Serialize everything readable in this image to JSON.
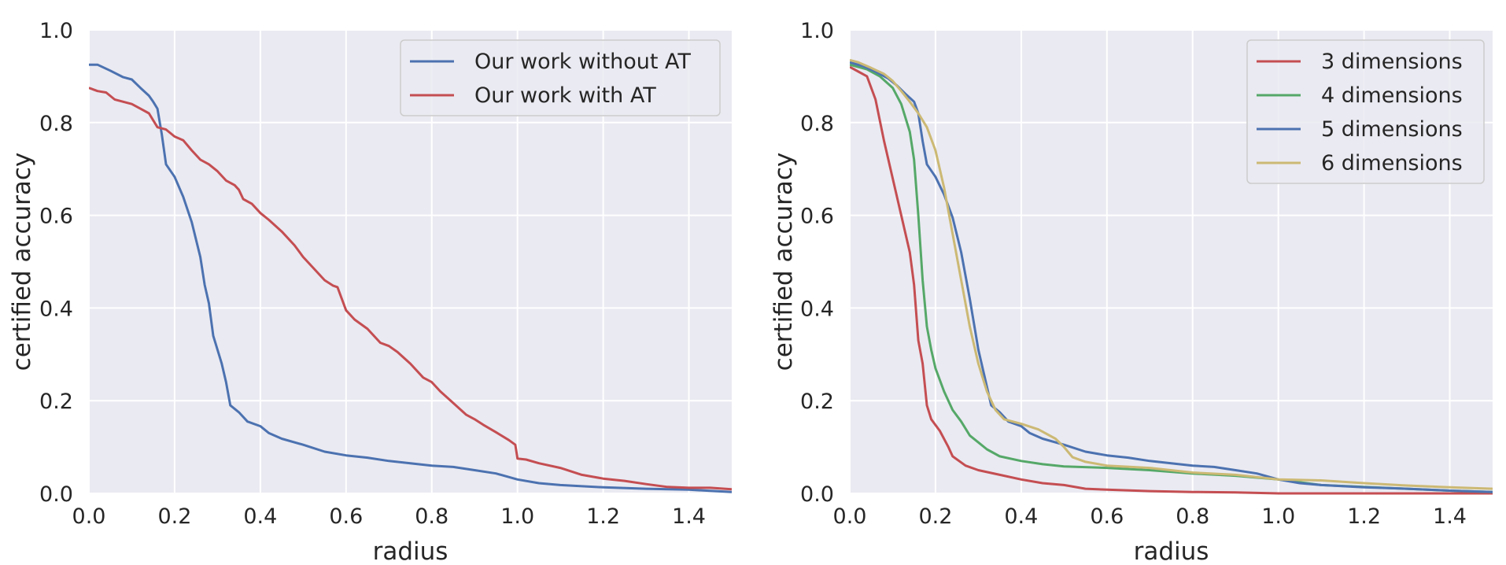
{
  "chart_data": [
    {
      "type": "line",
      "xlabel": "radius",
      "ylabel": "certified accuracy",
      "xlim": [
        0,
        1.5
      ],
      "ylim": [
        0,
        1.0
      ],
      "xticks": [
        "0.0",
        "0.2",
        "0.4",
        "0.6",
        "0.8",
        "1.0",
        "1.2",
        "1.4"
      ],
      "yticks": [
        "0.0",
        "0.2",
        "0.4",
        "0.6",
        "0.8",
        "1.0"
      ],
      "grid": true,
      "legend_position": "top-right",
      "series": [
        {
          "name": "Our work without AT",
          "color": "#4c72b0",
          "points": [
            [
              0,
              0.925
            ],
            [
              0.02,
              0.925
            ],
            [
              0.05,
              0.912
            ],
            [
              0.08,
              0.898
            ],
            [
              0.1,
              0.893
            ],
            [
              0.12,
              0.875
            ],
            [
              0.14,
              0.858
            ],
            [
              0.15,
              0.845
            ],
            [
              0.16,
              0.83
            ],
            [
              0.17,
              0.775
            ],
            [
              0.18,
              0.71
            ],
            [
              0.2,
              0.683
            ],
            [
              0.22,
              0.64
            ],
            [
              0.24,
              0.585
            ],
            [
              0.26,
              0.51
            ],
            [
              0.27,
              0.45
            ],
            [
              0.28,
              0.41
            ],
            [
              0.29,
              0.34
            ],
            [
              0.31,
              0.28
            ],
            [
              0.32,
              0.24
            ],
            [
              0.33,
              0.19
            ],
            [
              0.35,
              0.175
            ],
            [
              0.37,
              0.155
            ],
            [
              0.4,
              0.145
            ],
            [
              0.42,
              0.13
            ],
            [
              0.45,
              0.118
            ],
            [
              0.5,
              0.105
            ],
            [
              0.55,
              0.09
            ],
            [
              0.6,
              0.082
            ],
            [
              0.65,
              0.077
            ],
            [
              0.7,
              0.07
            ],
            [
              0.75,
              0.065
            ],
            [
              0.8,
              0.06
            ],
            [
              0.85,
              0.057
            ],
            [
              0.9,
              0.05
            ],
            [
              0.95,
              0.043
            ],
            [
              1.0,
              0.03
            ],
            [
              1.05,
              0.022
            ],
            [
              1.1,
              0.018
            ],
            [
              1.2,
              0.013
            ],
            [
              1.3,
              0.01
            ],
            [
              1.4,
              0.008
            ],
            [
              1.5,
              0.003
            ]
          ]
        },
        {
          "name": "Our work with AT",
          "color": "#c44e52",
          "points": [
            [
              0,
              0.875
            ],
            [
              0.02,
              0.868
            ],
            [
              0.04,
              0.865
            ],
            [
              0.06,
              0.85
            ],
            [
              0.08,
              0.845
            ],
            [
              0.1,
              0.84
            ],
            [
              0.12,
              0.83
            ],
            [
              0.14,
              0.82
            ],
            [
              0.16,
              0.79
            ],
            [
              0.18,
              0.785
            ],
            [
              0.2,
              0.77
            ],
            [
              0.22,
              0.762
            ],
            [
              0.24,
              0.74
            ],
            [
              0.26,
              0.72
            ],
            [
              0.28,
              0.71
            ],
            [
              0.3,
              0.695
            ],
            [
              0.32,
              0.675
            ],
            [
              0.34,
              0.665
            ],
            [
              0.35,
              0.655
            ],
            [
              0.36,
              0.635
            ],
            [
              0.38,
              0.625
            ],
            [
              0.4,
              0.605
            ],
            [
              0.42,
              0.59
            ],
            [
              0.45,
              0.565
            ],
            [
              0.48,
              0.535
            ],
            [
              0.5,
              0.51
            ],
            [
              0.52,
              0.49
            ],
            [
              0.55,
              0.46
            ],
            [
              0.57,
              0.448
            ],
            [
              0.58,
              0.445
            ],
            [
              0.6,
              0.395
            ],
            [
              0.62,
              0.375
            ],
            [
              0.65,
              0.355
            ],
            [
              0.68,
              0.325
            ],
            [
              0.7,
              0.318
            ],
            [
              0.72,
              0.305
            ],
            [
              0.75,
              0.28
            ],
            [
              0.78,
              0.25
            ],
            [
              0.8,
              0.24
            ],
            [
              0.82,
              0.22
            ],
            [
              0.85,
              0.195
            ],
            [
              0.88,
              0.17
            ],
            [
              0.9,
              0.16
            ],
            [
              0.92,
              0.148
            ],
            [
              0.95,
              0.132
            ],
            [
              0.98,
              0.115
            ],
            [
              0.995,
              0.105
            ],
            [
              1.0,
              0.075
            ],
            [
              1.02,
              0.073
            ],
            [
              1.05,
              0.065
            ],
            [
              1.1,
              0.055
            ],
            [
              1.15,
              0.04
            ],
            [
              1.2,
              0.032
            ],
            [
              1.25,
              0.027
            ],
            [
              1.3,
              0.02
            ],
            [
              1.35,
              0.014
            ],
            [
              1.4,
              0.012
            ],
            [
              1.45,
              0.012
            ],
            [
              1.5,
              0.009
            ]
          ]
        }
      ]
    },
    {
      "type": "line",
      "xlabel": "radius",
      "ylabel": "certified accuracy",
      "xlim": [
        0,
        1.5
      ],
      "ylim": [
        0,
        1.0
      ],
      "xticks": [
        "0.0",
        "0.2",
        "0.4",
        "0.6",
        "0.8",
        "1.0",
        "1.2",
        "1.4"
      ],
      "yticks": [
        "0.0",
        "0.2",
        "0.4",
        "0.6",
        "0.8",
        "1.0"
      ],
      "grid": true,
      "legend_position": "top-right",
      "series": [
        {
          "name": "3 dimensions",
          "color": "#c44e52",
          "points": [
            [
              0,
              0.92
            ],
            [
              0.02,
              0.91
            ],
            [
              0.04,
              0.9
            ],
            [
              0.06,
              0.85
            ],
            [
              0.08,
              0.76
            ],
            [
              0.1,
              0.68
            ],
            [
              0.12,
              0.6
            ],
            [
              0.14,
              0.52
            ],
            [
              0.15,
              0.45
            ],
            [
              0.16,
              0.33
            ],
            [
              0.17,
              0.28
            ],
            [
              0.18,
              0.19
            ],
            [
              0.19,
              0.16
            ],
            [
              0.21,
              0.135
            ],
            [
              0.23,
              0.1
            ],
            [
              0.24,
              0.08
            ],
            [
              0.27,
              0.06
            ],
            [
              0.3,
              0.05
            ],
            [
              0.35,
              0.04
            ],
            [
              0.4,
              0.03
            ],
            [
              0.45,
              0.022
            ],
            [
              0.5,
              0.018
            ],
            [
              0.55,
              0.01
            ],
            [
              0.6,
              0.008
            ],
            [
              0.7,
              0.005
            ],
            [
              0.8,
              0.003
            ],
            [
              0.9,
              0.002
            ],
            [
              1.0,
              0.0
            ],
            [
              1.5,
              0.0
            ]
          ]
        },
        {
          "name": "4 dimensions",
          "color": "#55a868",
          "points": [
            [
              0,
              0.925
            ],
            [
              0.04,
              0.915
            ],
            [
              0.07,
              0.9
            ],
            [
              0.1,
              0.875
            ],
            [
              0.12,
              0.84
            ],
            [
              0.14,
              0.78
            ],
            [
              0.15,
              0.72
            ],
            [
              0.16,
              0.6
            ],
            [
              0.17,
              0.46
            ],
            [
              0.18,
              0.36
            ],
            [
              0.19,
              0.31
            ],
            [
              0.2,
              0.27
            ],
            [
              0.22,
              0.22
            ],
            [
              0.24,
              0.18
            ],
            [
              0.26,
              0.155
            ],
            [
              0.28,
              0.125
            ],
            [
              0.3,
              0.11
            ],
            [
              0.32,
              0.095
            ],
            [
              0.35,
              0.08
            ],
            [
              0.4,
              0.07
            ],
            [
              0.45,
              0.063
            ],
            [
              0.5,
              0.058
            ],
            [
              0.6,
              0.055
            ],
            [
              0.7,
              0.05
            ],
            [
              0.8,
              0.043
            ],
            [
              0.9,
              0.038
            ],
            [
              1.0,
              0.03
            ],
            [
              1.1,
              0.018
            ],
            [
              1.2,
              0.014
            ],
            [
              1.3,
              0.01
            ],
            [
              1.4,
              0.006
            ],
            [
              1.5,
              0.003
            ]
          ]
        },
        {
          "name": "5 dimensions",
          "color": "#4c72b0",
          "points": [
            [
              0,
              0.93
            ],
            [
              0.03,
              0.922
            ],
            [
              0.06,
              0.91
            ],
            [
              0.09,
              0.895
            ],
            [
              0.11,
              0.88
            ],
            [
              0.13,
              0.862
            ],
            [
              0.15,
              0.845
            ],
            [
              0.16,
              0.82
            ],
            [
              0.17,
              0.76
            ],
            [
              0.18,
              0.71
            ],
            [
              0.2,
              0.683
            ],
            [
              0.22,
              0.645
            ],
            [
              0.24,
              0.595
            ],
            [
              0.26,
              0.52
            ],
            [
              0.28,
              0.42
            ],
            [
              0.3,
              0.31
            ],
            [
              0.32,
              0.23
            ],
            [
              0.33,
              0.19
            ],
            [
              0.35,
              0.175
            ],
            [
              0.37,
              0.155
            ],
            [
              0.4,
              0.145
            ],
            [
              0.42,
              0.13
            ],
            [
              0.45,
              0.118
            ],
            [
              0.5,
              0.105
            ],
            [
              0.55,
              0.09
            ],
            [
              0.6,
              0.082
            ],
            [
              0.65,
              0.077
            ],
            [
              0.7,
              0.07
            ],
            [
              0.75,
              0.065
            ],
            [
              0.8,
              0.06
            ],
            [
              0.85,
              0.057
            ],
            [
              0.9,
              0.05
            ],
            [
              0.95,
              0.043
            ],
            [
              1.0,
              0.03
            ],
            [
              1.05,
              0.022
            ],
            [
              1.1,
              0.018
            ],
            [
              1.2,
              0.013
            ],
            [
              1.3,
              0.01
            ],
            [
              1.4,
              0.006
            ],
            [
              1.5,
              0.003
            ]
          ]
        },
        {
          "name": "6 dimensions",
          "color": "#ccb974",
          "points": [
            [
              0,
              0.935
            ],
            [
              0.02,
              0.93
            ],
            [
              0.05,
              0.918
            ],
            [
              0.08,
              0.905
            ],
            [
              0.1,
              0.89
            ],
            [
              0.12,
              0.868
            ],
            [
              0.14,
              0.845
            ],
            [
              0.16,
              0.82
            ],
            [
              0.18,
              0.79
            ],
            [
              0.2,
              0.74
            ],
            [
              0.22,
              0.66
            ],
            [
              0.24,
              0.56
            ],
            [
              0.26,
              0.46
            ],
            [
              0.28,
              0.36
            ],
            [
              0.3,
              0.28
            ],
            [
              0.32,
              0.22
            ],
            [
              0.34,
              0.18
            ],
            [
              0.36,
              0.16
            ],
            [
              0.4,
              0.15
            ],
            [
              0.44,
              0.138
            ],
            [
              0.48,
              0.118
            ],
            [
              0.5,
              0.1
            ],
            [
              0.52,
              0.078
            ],
            [
              0.55,
              0.068
            ],
            [
              0.6,
              0.06
            ],
            [
              0.7,
              0.055
            ],
            [
              0.8,
              0.045
            ],
            [
              0.9,
              0.04
            ],
            [
              1.0,
              0.03
            ],
            [
              1.1,
              0.028
            ],
            [
              1.2,
              0.022
            ],
            [
              1.3,
              0.017
            ],
            [
              1.4,
              0.013
            ],
            [
              1.5,
              0.01
            ]
          ]
        }
      ]
    }
  ]
}
